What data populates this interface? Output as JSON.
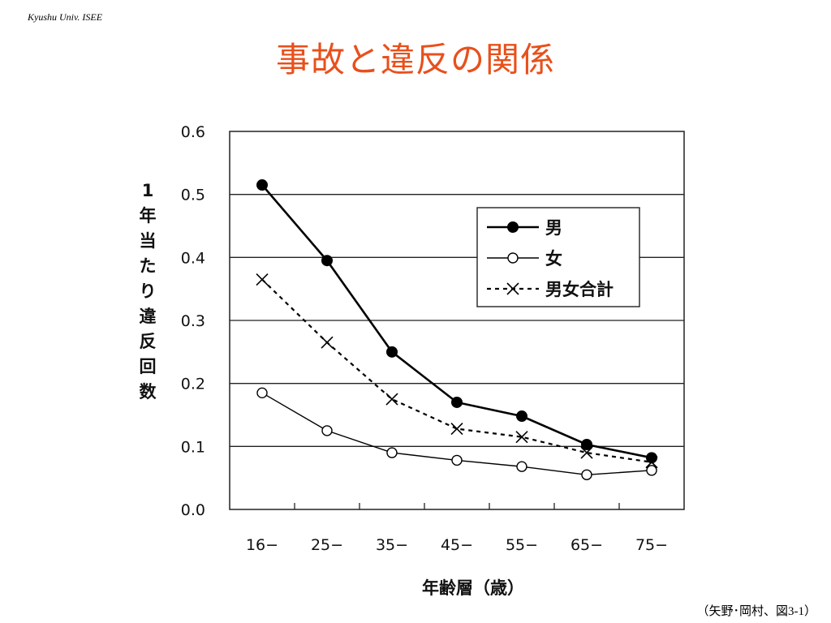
{
  "header": {
    "tag": "Kyushu Univ. ISEE",
    "title": "事故と違反の関係"
  },
  "footer": {
    "citation": "（矢野･岡村、図3-1）"
  },
  "chart_data": {
    "type": "line",
    "xlabel": "年齢層（歳）",
    "ylabel": "1年当たり違反回数",
    "categories": [
      "16−",
      "25−",
      "35−",
      "45−",
      "55−",
      "65−",
      "75−"
    ],
    "yticks": [
      "0.0",
      "0.1",
      "0.2",
      "0.3",
      "0.4",
      "0.5",
      "0.6"
    ],
    "ylim": [
      0,
      0.6
    ],
    "grid": "horizontal",
    "legend_placement": "top-right",
    "series": [
      {
        "name": "男",
        "marker": "filled-circle",
        "line": "solid-thick",
        "color": "#000000",
        "values": [
          0.515,
          0.395,
          0.25,
          0.17,
          0.148,
          0.103,
          0.082
        ]
      },
      {
        "name": "女",
        "marker": "open-circle",
        "line": "solid-thin",
        "color": "#000000",
        "values": [
          0.185,
          0.125,
          0.09,
          0.078,
          0.068,
          0.055,
          0.062
        ]
      },
      {
        "name": "男女合計",
        "marker": "x",
        "line": "dashed",
        "color": "#000000",
        "values": [
          0.365,
          0.265,
          0.175,
          0.128,
          0.115,
          0.09,
          0.075
        ]
      }
    ]
  }
}
